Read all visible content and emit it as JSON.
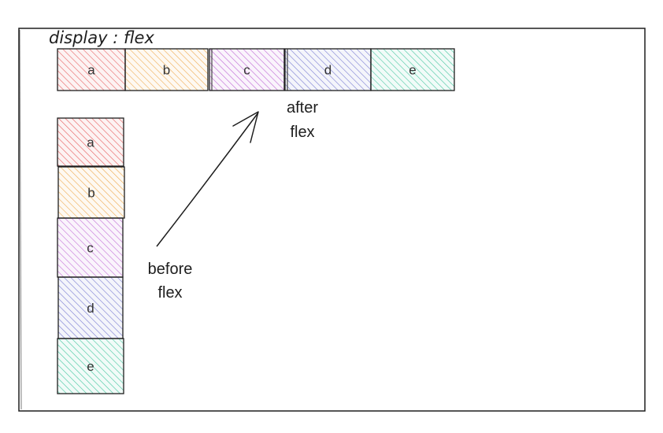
{
  "title": "display : flex",
  "boxes": [
    {
      "id": "a",
      "label": "a",
      "color": "#e03131"
    },
    {
      "id": "b",
      "label": "b",
      "color": "#e8911a"
    },
    {
      "id": "c",
      "label": "c",
      "color": "#ae3ec9"
    },
    {
      "id": "d",
      "label": "d",
      "color": "#4c4fc2"
    },
    {
      "id": "e",
      "label": "e",
      "color": "#12b886"
    }
  ],
  "notes": {
    "after": [
      "after",
      "flex"
    ],
    "before": [
      "before",
      "flex"
    ]
  },
  "colors": {
    "stroke": "#1e1e1e",
    "background": "#ffffff"
  }
}
